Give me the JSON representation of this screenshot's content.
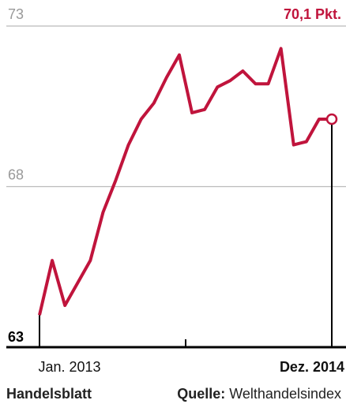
{
  "chart_data": {
    "type": "line",
    "categories": [
      "Jan. 2013",
      null,
      null,
      null,
      null,
      null,
      null,
      null,
      null,
      null,
      null,
      null,
      null,
      null,
      null,
      null,
      null,
      null,
      null,
      null,
      null,
      null,
      null,
      "Dez. 2014"
    ],
    "series": [
      {
        "color": "#c0143c",
        "values": [
          64.0,
          65.7,
          64.3,
          65.0,
          65.7,
          67.2,
          68.2,
          69.3,
          70.1,
          70.6,
          71.4,
          72.1,
          70.3,
          70.4,
          71.1,
          71.3,
          71.6,
          71.2,
          71.2,
          72.3,
          69.3,
          69.4,
          70.1,
          70.1
        ],
        "value_labels": [
          null,
          null,
          null,
          null,
          null,
          null,
          null,
          null,
          null,
          null,
          null,
          null,
          null,
          null,
          null,
          null,
          null,
          null,
          null,
          null,
          null,
          null,
          null,
          "70,1 Pkt."
        ]
      }
    ],
    "ylim": [
      63,
      73
    ],
    "yticks": [
      63,
      68,
      73
    ],
    "grid": true,
    "footer": {
      "brand": "Handelsblatt",
      "source_label": "Quelle:",
      "source": "Welthandelsindex"
    }
  }
}
